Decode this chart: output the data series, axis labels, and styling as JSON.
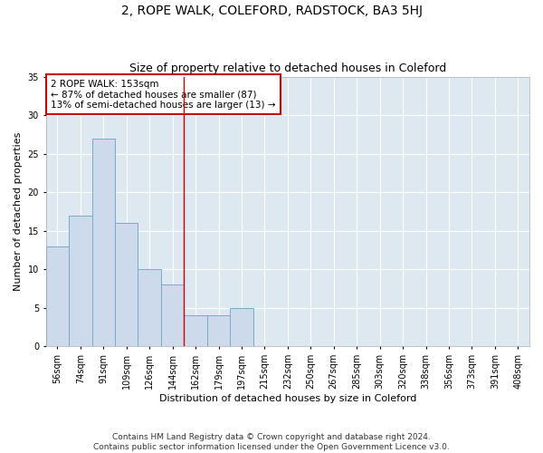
{
  "title": "2, ROPE WALK, COLEFORD, RADSTOCK, BA3 5HJ",
  "subtitle": "Size of property relative to detached houses in Coleford",
  "xlabel": "Distribution of detached houses by size in Coleford",
  "ylabel": "Number of detached properties",
  "bin_labels": [
    "56sqm",
    "74sqm",
    "91sqm",
    "109sqm",
    "126sqm",
    "144sqm",
    "162sqm",
    "179sqm",
    "197sqm",
    "215sqm",
    "232sqm",
    "250sqm",
    "267sqm",
    "285sqm",
    "303sqm",
    "320sqm",
    "338sqm",
    "356sqm",
    "373sqm",
    "391sqm",
    "408sqm"
  ],
  "bar_heights": [
    13,
    17,
    27,
    16,
    10,
    8,
    4,
    4,
    5,
    0,
    0,
    0,
    0,
    0,
    0,
    0,
    0,
    0,
    0,
    0,
    0
  ],
  "bar_color": "#ccdaeb",
  "bar_edge_color": "#7aaac8",
  "highlight_line_bin_index": 5.5,
  "ylim": [
    0,
    35
  ],
  "yticks": [
    0,
    5,
    10,
    15,
    20,
    25,
    30,
    35
  ],
  "annotation_text": "2 ROPE WALK: 153sqm\n← 87% of detached houses are smaller (87)\n13% of semi-detached houses are larger (13) →",
  "annotation_box_color": "#ffffff",
  "annotation_box_edge_color": "#cc0000",
  "footer_text": "Contains HM Land Registry data © Crown copyright and database right 2024.\nContains public sector information licensed under the Open Government Licence v3.0.",
  "bg_color": "#ffffff",
  "plot_bg_color": "#dde8f0",
  "grid_color": "#ffffff",
  "title_fontsize": 10,
  "subtitle_fontsize": 9,
  "axis_label_fontsize": 8,
  "tick_fontsize": 7,
  "annotation_fontsize": 7.5,
  "footer_fontsize": 6.5
}
